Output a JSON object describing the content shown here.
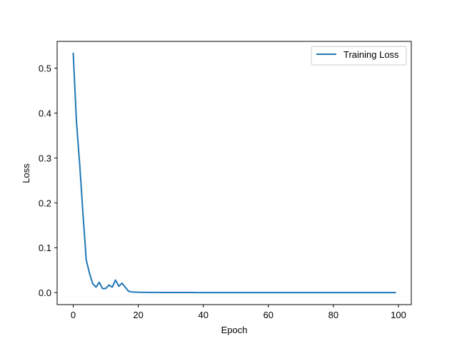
{
  "chart_data": {
    "type": "line",
    "title": "",
    "xlabel": "Epoch",
    "ylabel": "Loss",
    "xlim": [
      -4.95,
      103.95
    ],
    "ylim": [
      -0.0268,
      0.5598
    ],
    "xticks": [
      0,
      20,
      40,
      60,
      80,
      100
    ],
    "xtick_labels": [
      "0",
      "20",
      "40",
      "60",
      "80",
      "100"
    ],
    "yticks": [
      0.0,
      0.1,
      0.2,
      0.3,
      0.4,
      0.5
    ],
    "ytick_labels": [
      "0.0",
      "0.1",
      "0.2",
      "0.3",
      "0.4",
      "0.5"
    ],
    "grid": false,
    "legend_position": "upper right",
    "series": [
      {
        "name": "Training Loss",
        "color": "#1f77b4",
        "x": [
          0,
          1,
          2,
          3,
          4,
          5,
          6,
          7,
          8,
          9,
          10,
          11,
          12,
          13,
          14,
          15,
          16,
          17,
          18,
          19,
          20,
          21,
          22,
          23,
          24,
          25,
          26,
          27,
          28,
          29,
          30,
          31,
          32,
          33,
          34,
          35,
          36,
          37,
          38,
          39,
          40,
          41,
          42,
          43,
          44,
          45,
          46,
          47,
          48,
          49,
          50,
          51,
          52,
          53,
          54,
          55,
          56,
          57,
          58,
          59,
          60,
          61,
          62,
          63,
          64,
          65,
          66,
          67,
          68,
          69,
          70,
          71,
          72,
          73,
          74,
          75,
          76,
          77,
          78,
          79,
          80,
          81,
          82,
          83,
          84,
          85,
          86,
          87,
          88,
          89,
          90,
          91,
          92,
          93,
          94,
          95,
          96,
          97,
          98,
          99
        ],
        "y": [
          0.533,
          0.38,
          0.285,
          0.175,
          0.073,
          0.043,
          0.02,
          0.012,
          0.023,
          0.009,
          0.009,
          0.017,
          0.012,
          0.028,
          0.014,
          0.021,
          0.012,
          0.003,
          0.0015,
          0.001,
          0.0008,
          0.0007,
          0.0006,
          0.0005,
          0.0005,
          0.0004,
          0.0004,
          0.0003,
          0.0003,
          0.0003,
          0.0003,
          0.0002,
          0.0002,
          0.0002,
          0.0002,
          0.0002,
          0.0002,
          0.0002,
          0.0001,
          0.0001,
          0.0001,
          0.0001,
          0.0001,
          0.0001,
          0.0001,
          0.0001,
          0.0001,
          0.0001,
          0.0001,
          0.0001,
          0.0001,
          0.0001,
          0.0001,
          0.0001,
          0.0001,
          0.0001,
          0.0001,
          0.0001,
          0.0001,
          0.0001,
          0.0001,
          0.0001,
          0.0001,
          0.0001,
          0.0001,
          0.0001,
          0.0001,
          0.0001,
          0.0001,
          0.0001,
          0.0001,
          0.0001,
          0.0001,
          0.0001,
          0.0001,
          0.0001,
          0.0001,
          0.0001,
          0.0001,
          0.0001,
          0.0001,
          0.0001,
          0.0001,
          0.0001,
          0.0001,
          0.0001,
          0.0001,
          0.0001,
          0.0001,
          0.0001,
          0.0001,
          0.0001,
          0.0001,
          0.0001,
          0.0001,
          0.0001,
          0.0001,
          0.0001,
          0.0001,
          0.0001
        ]
      }
    ]
  }
}
